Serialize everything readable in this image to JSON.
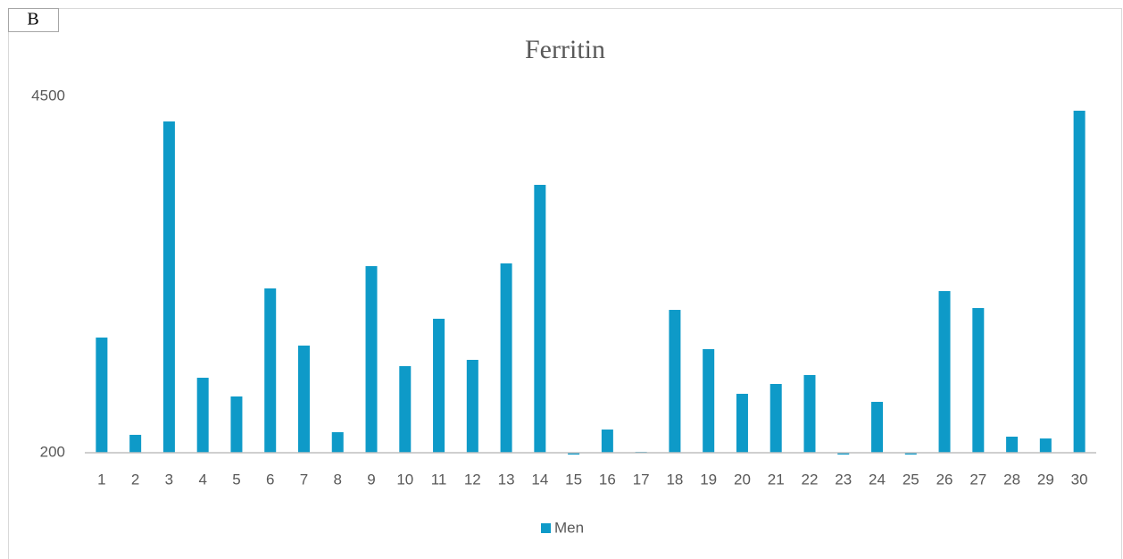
{
  "chart_data": {
    "type": "bar",
    "panel": "B",
    "title": "Ferritin",
    "categories": [
      "1",
      "2",
      "3",
      "4",
      "5",
      "6",
      "7",
      "8",
      "9",
      "10",
      "11",
      "12",
      "13",
      "14",
      "15",
      "16",
      "17",
      "18",
      "19",
      "20",
      "21",
      "22",
      "23",
      "24",
      "25",
      "26",
      "27",
      "28",
      "29",
      "30"
    ],
    "series": [
      {
        "name": "Men",
        "color": "#0e9ac8",
        "values": [
          1590,
          416,
          4198,
          1105,
          879,
          2183,
          1493,
          448,
          2452,
          1245,
          1817,
          1321,
          2485,
          3433,
          178,
          480,
          211,
          1924,
          1450,
          911,
          1030,
          1138,
          178,
          814,
          178,
          2151,
          1946,
          394,
          372,
          4328
        ]
      }
    ],
    "ylim": [
      200,
      4500
    ],
    "yticks": [
      200,
      4500
    ],
    "legend": "bottom"
  }
}
